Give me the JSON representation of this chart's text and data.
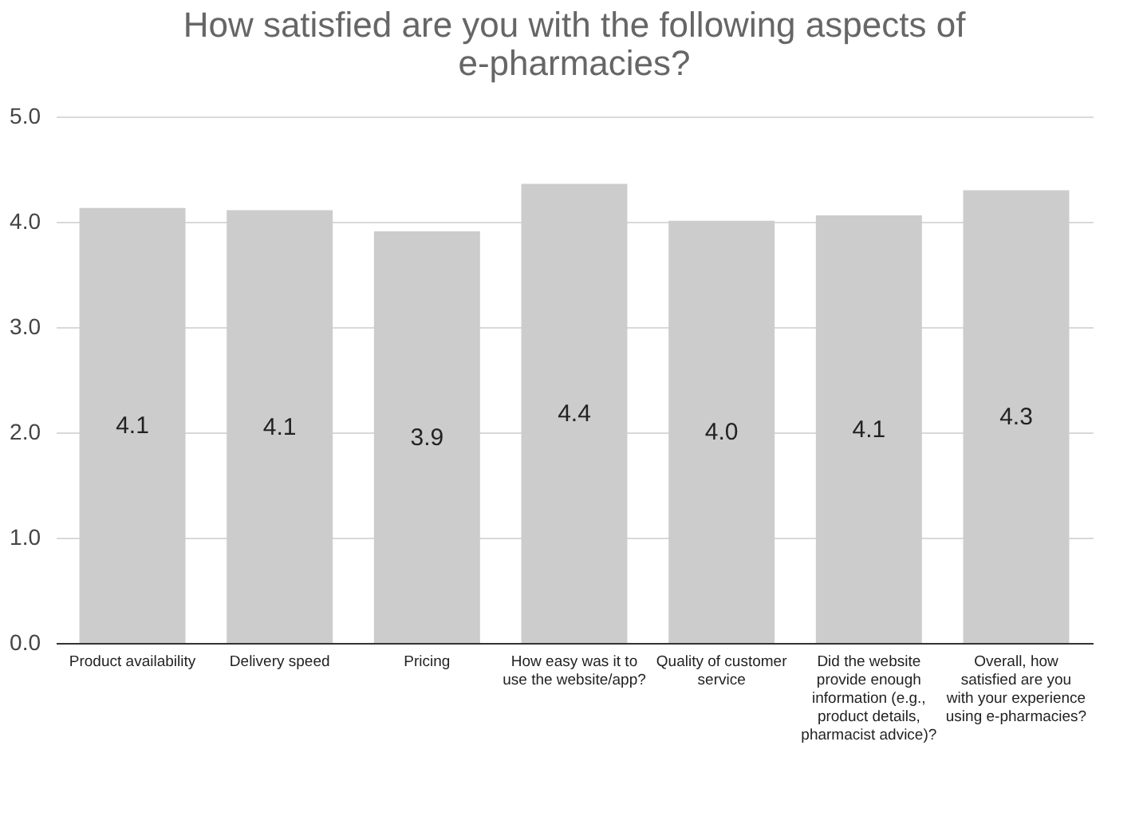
{
  "chart_data": {
    "type": "bar",
    "title": "How satisfied are you with the following aspects of e-pharmacies?",
    "categories": [
      "Product availability",
      "Delivery speed",
      "Pricing",
      "How easy was it to use the website/app?",
      "Quality of customer service",
      "Did the website provide enough information (e.g., product details, pharmacist advice)?",
      "Overall, how satisfied are you with your experience using e-pharmacies?"
    ],
    "values": [
      4.13,
      4.11,
      3.91,
      4.36,
      4.01,
      4.06,
      4.3
    ],
    "value_labels": [
      "4.1",
      "4.1",
      "3.9",
      "4.4",
      "4.0",
      "4.1",
      "4.3"
    ],
    "color": "#cccccc",
    "ylim": [
      0,
      5
    ],
    "yticks": [
      {
        "value": 0,
        "label": "0.0"
      },
      {
        "value": 1,
        "label": "1.0"
      },
      {
        "value": 2,
        "label": "2.0"
      },
      {
        "value": 3,
        "label": "3.0"
      },
      {
        "value": 4,
        "label": "4.0"
      },
      {
        "value": 5,
        "label": "5.0"
      }
    ],
    "grid": "y"
  }
}
